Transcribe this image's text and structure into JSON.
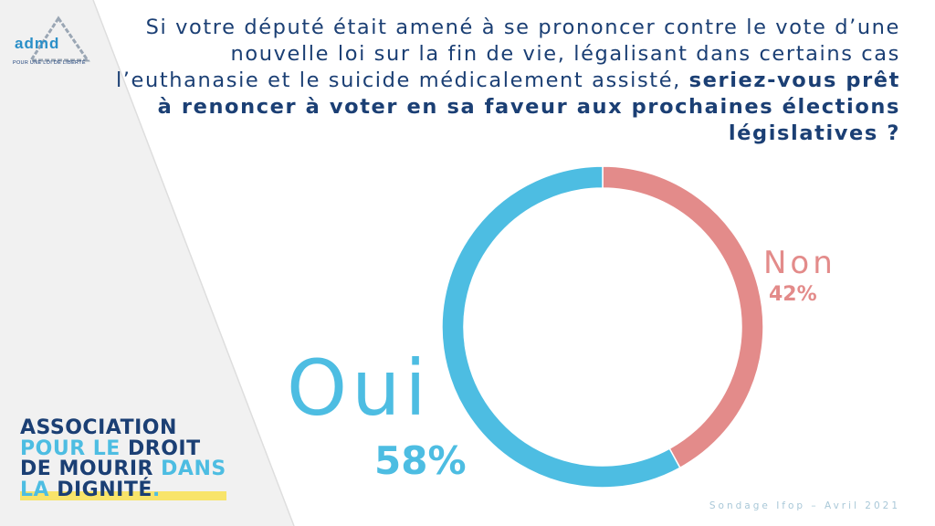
{
  "logo": {
    "name": "admd",
    "tagline": "POUR UNE LOI DE LIBERTÉ"
  },
  "question": {
    "part1": "Si votre député était amené à se prononcer contre le vote d’une nouvelle loi sur la fin de vie, légalisant dans certains cas l’euthanasie et le suicide médicalement assisté,",
    "part2": "seriez-vous prêt à renoncer à voter en sa faveur aux prochaines élections législatives ?"
  },
  "association": {
    "line1": "ASSOCIATION",
    "line2a": "POUR LE",
    "line2b": "DROIT",
    "line3a": "DE MOURIR",
    "line3b": "DANS",
    "line4a": "LA",
    "line4b": "DIGNITÉ",
    "line4c": "."
  },
  "source": "Sondage Ifop – Avril 2021",
  "colors": {
    "oui": "#4dbde2",
    "non": "#e38b8a",
    "navy": "#1b3f74"
  },
  "chart_data": {
    "type": "pie",
    "style": "donut",
    "categories": [
      "Non",
      "Oui"
    ],
    "values": [
      42,
      58
    ],
    "labels": [
      "42%",
      "58%"
    ],
    "colors": [
      "#e38b8a",
      "#4dbde2"
    ]
  }
}
